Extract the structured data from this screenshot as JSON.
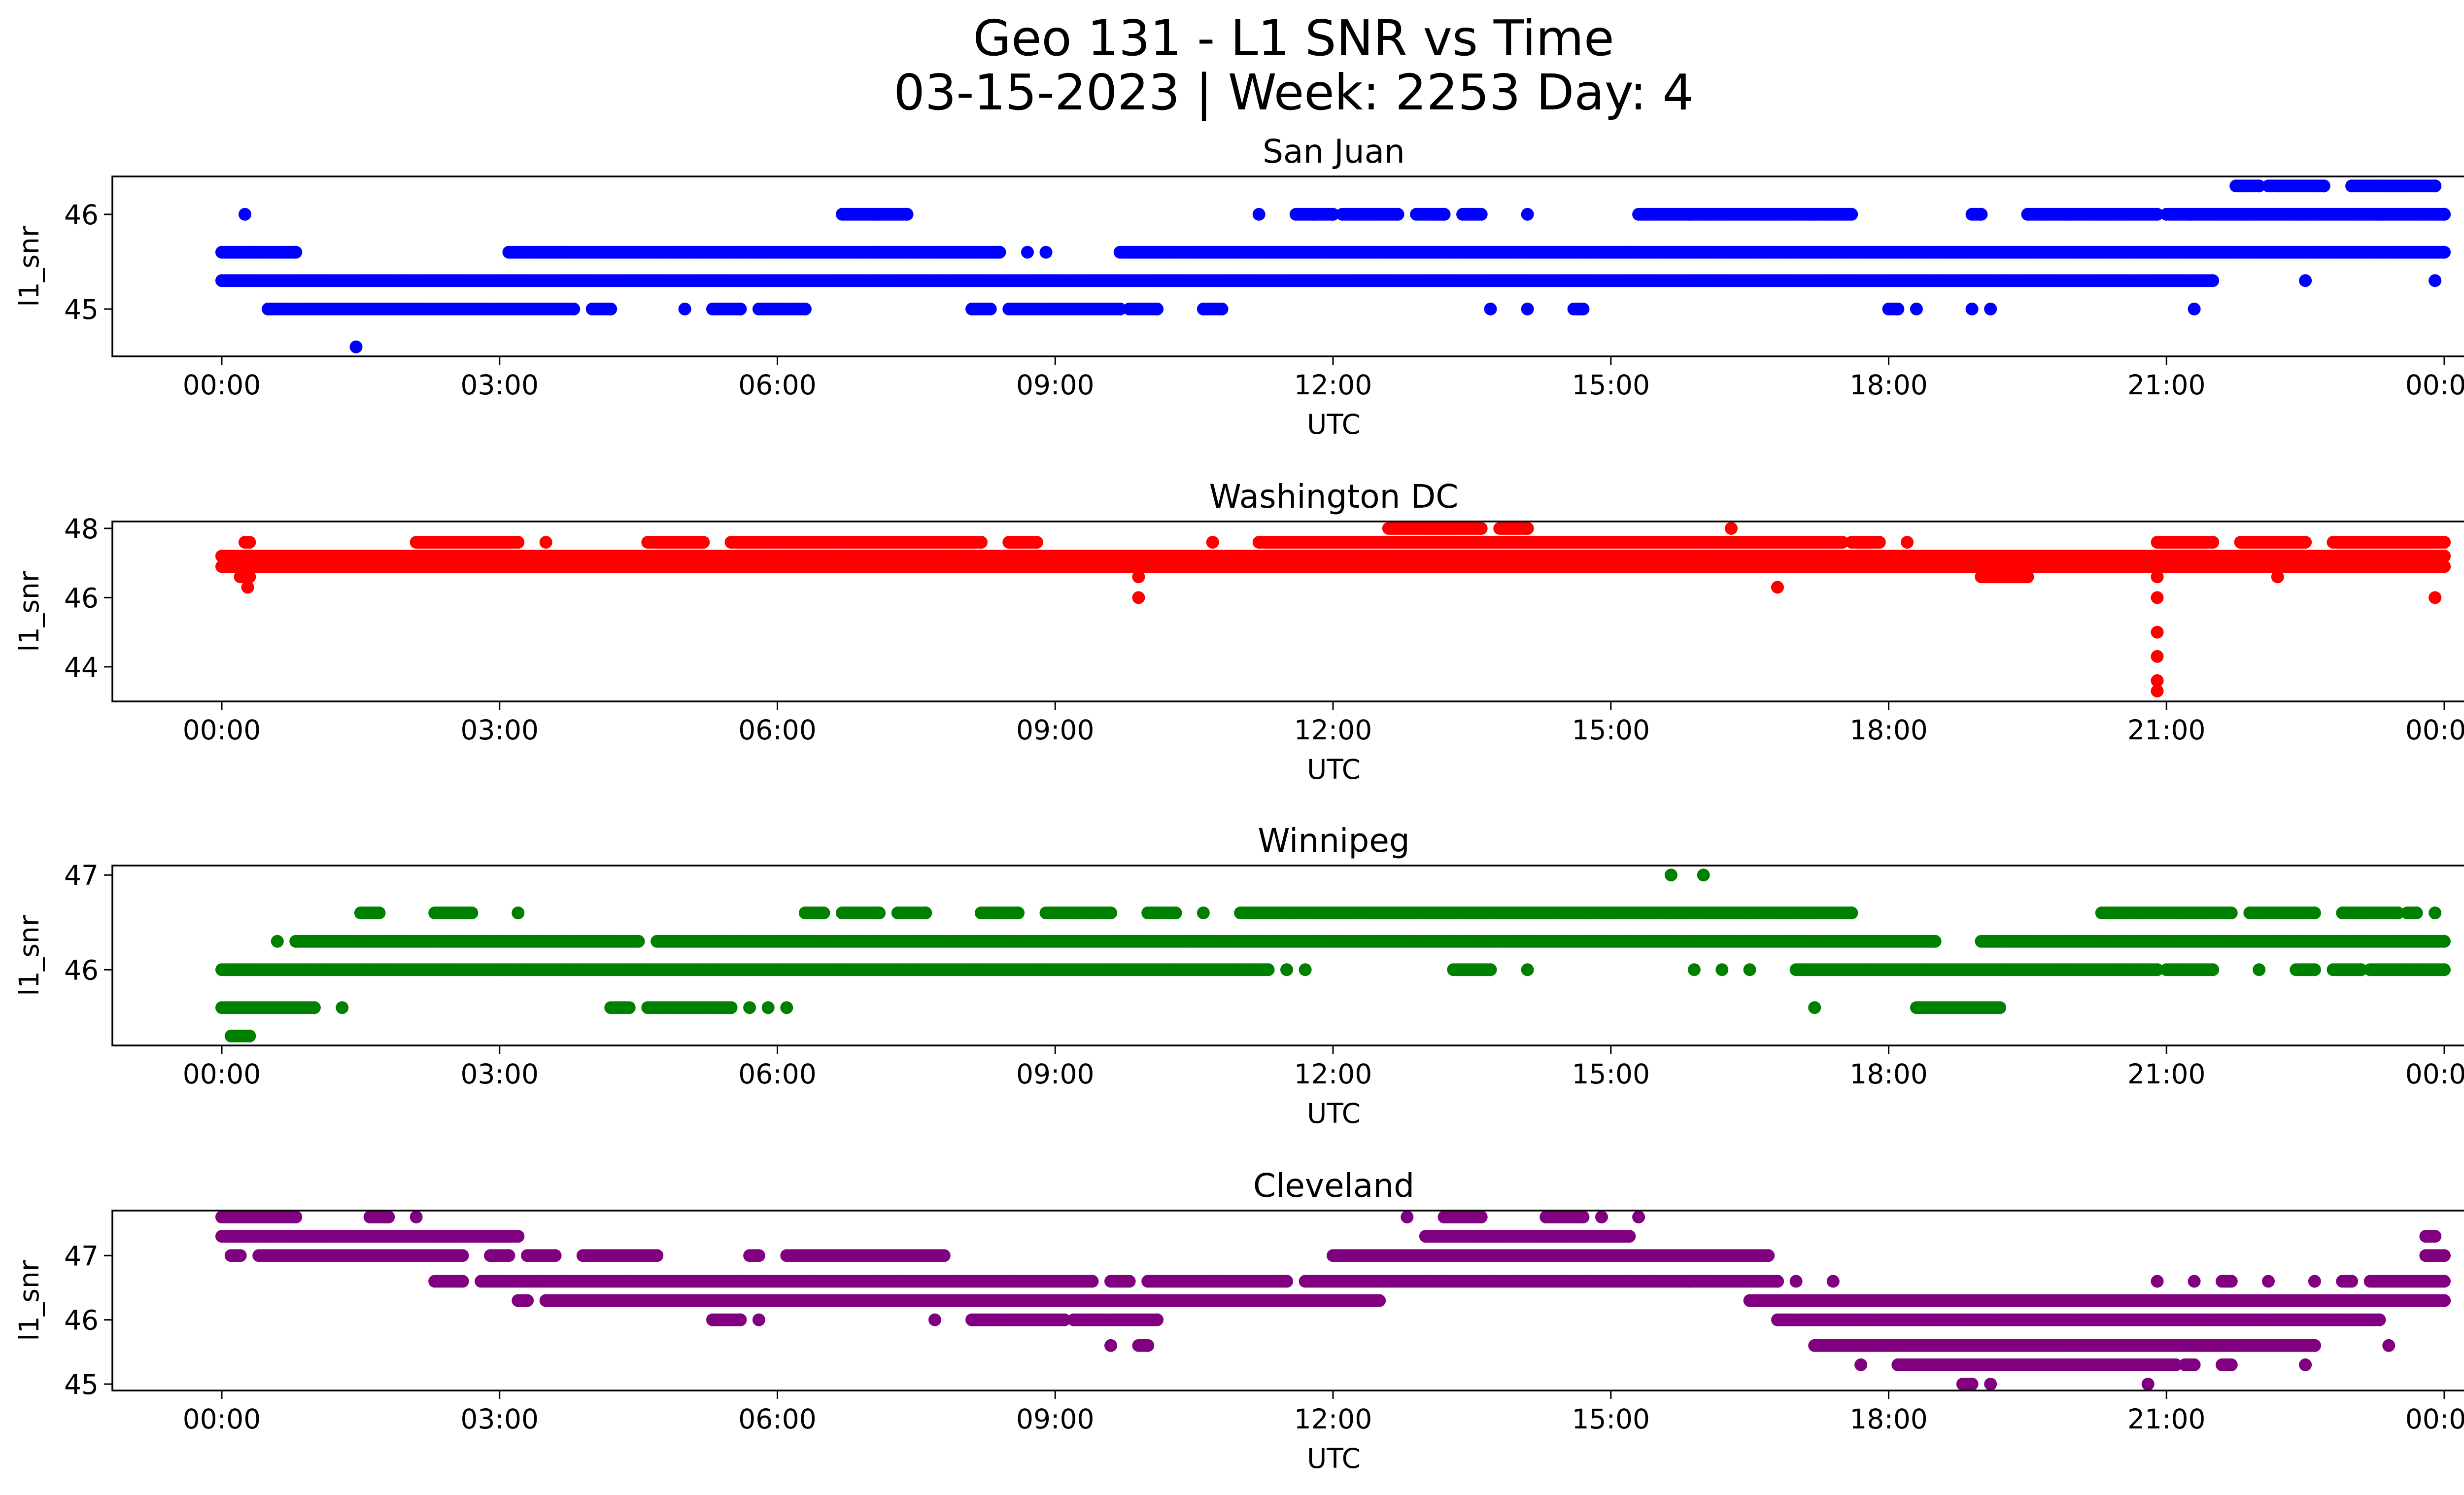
{
  "title_line1": "Geo 131 - L1 SNR vs Time",
  "title_line2": "03-15-2023 | Week: 2253 Day: 4",
  "chart_data": [
    {
      "type": "scatter",
      "title": "San Juan",
      "xlabel": "UTC",
      "ylabel": "l1_snr",
      "color": "#0000ff",
      "xlim": [
        "2023-03-15 00:00",
        "2023-03-16 00:00"
      ],
      "ylim": [
        44.5,
        46.4
      ],
      "xticks": [
        "00:00",
        "03:00",
        "06:00",
        "09:00",
        "12:00",
        "15:00",
        "18:00",
        "21:00",
        "00:00"
      ],
      "yticks": [
        45,
        46
      ],
      "x_unit": "hours UTC",
      "levels": [
        {
          "y": 46.3,
          "ranges": [
            [
              21.75,
              22.0
            ],
            [
              22.1,
              22.7
            ],
            [
              23.0,
              23.9
            ]
          ]
        },
        {
          "y": 46.0,
          "ranges": [
            [
              0.25,
              0.25
            ],
            [
              6.7,
              7.4
            ],
            [
              11.2,
              11.2
            ],
            [
              11.6,
              12.0
            ],
            [
              12.1,
              12.7
            ],
            [
              12.9,
              13.2
            ],
            [
              13.4,
              13.6
            ],
            [
              14.1,
              14.1
            ],
            [
              15.3,
              17.6
            ],
            [
              18.9,
              19.0
            ],
            [
              19.5,
              20.9
            ],
            [
              21.0,
              24.0
            ]
          ]
        },
        {
          "y": 45.6,
          "ranges": [
            [
              0.0,
              0.8
            ],
            [
              3.1,
              8.4
            ],
            [
              8.7,
              8.7
            ],
            [
              8.9,
              8.9
            ],
            [
              9.7,
              24.0
            ]
          ]
        },
        {
          "y": 45.3,
          "ranges": [
            [
              0.0,
              21.5
            ],
            [
              22.5,
              22.5
            ],
            [
              23.9,
              23.9
            ]
          ]
        },
        {
          "y": 45.0,
          "ranges": [
            [
              0.5,
              3.8
            ],
            [
              4.0,
              4.2
            ],
            [
              5.0,
              5.0
            ],
            [
              5.3,
              5.6
            ],
            [
              5.8,
              6.3
            ],
            [
              8.1,
              8.3
            ],
            [
              8.5,
              9.7
            ],
            [
              9.8,
              10.1
            ],
            [
              10.6,
              10.8
            ],
            [
              13.7,
              13.7
            ],
            [
              14.1,
              14.1
            ],
            [
              14.6,
              14.7
            ],
            [
              18.0,
              18.1
            ],
            [
              18.3,
              18.3
            ],
            [
              18.9,
              18.9
            ],
            [
              19.1,
              19.1
            ],
            [
              21.3,
              21.3
            ]
          ]
        },
        {
          "y": 44.6,
          "ranges": [
            [
              1.45,
              1.45
            ]
          ]
        }
      ]
    },
    {
      "type": "scatter",
      "title": "Washington DC",
      "xlabel": "UTC",
      "ylabel": "l1_snr",
      "color": "#ff0000",
      "xlim": [
        "2023-03-15 00:00",
        "2023-03-16 00:00"
      ],
      "ylim": [
        43.0,
        48.2
      ],
      "xticks": [
        "00:00",
        "03:00",
        "06:00",
        "09:00",
        "12:00",
        "15:00",
        "18:00",
        "21:00",
        "00:00"
      ],
      "yticks": [
        44,
        46,
        48
      ],
      "x_unit": "hours UTC",
      "levels": [
        {
          "y": 48.0,
          "ranges": [
            [
              12.6,
              13.6
            ],
            [
              13.8,
              14.1
            ],
            [
              16.3,
              16.3
            ]
          ]
        },
        {
          "y": 47.6,
          "ranges": [
            [
              0.25,
              0.3
            ],
            [
              2.1,
              3.2
            ],
            [
              3.5,
              3.5
            ],
            [
              4.6,
              5.2
            ],
            [
              5.5,
              8.2
            ],
            [
              8.5,
              8.8
            ],
            [
              10.7,
              10.7
            ],
            [
              11.2,
              17.5
            ],
            [
              17.6,
              17.9
            ],
            [
              18.2,
              18.2
            ],
            [
              20.9,
              21.5
            ],
            [
              21.8,
              22.5
            ],
            [
              22.8,
              24.0
            ]
          ]
        },
        {
          "y": 47.2,
          "ranges": [
            [
              0.0,
              24.0
            ]
          ]
        },
        {
          "y": 46.9,
          "ranges": [
            [
              0.0,
              24.0
            ]
          ]
        },
        {
          "y": 46.6,
          "ranges": [
            [
              0.2,
              0.3
            ],
            [
              9.9,
              9.9
            ],
            [
              19.0,
              19.5
            ],
            [
              20.9,
              20.9
            ],
            [
              22.2,
              22.2
            ]
          ]
        },
        {
          "y": 46.3,
          "ranges": [
            [
              0.28,
              0.28
            ],
            [
              16.8,
              16.8
            ]
          ]
        },
        {
          "y": 46.0,
          "ranges": [
            [
              9.9,
              9.9
            ],
            [
              20.9,
              20.9
            ],
            [
              23.9,
              23.9
            ]
          ]
        },
        {
          "y": 45.0,
          "ranges": [
            [
              20.9,
              20.9
            ]
          ]
        },
        {
          "y": 44.3,
          "ranges": [
            [
              20.9,
              20.9
            ]
          ]
        },
        {
          "y": 43.6,
          "ranges": [
            [
              20.9,
              20.9
            ]
          ]
        },
        {
          "y": 43.3,
          "ranges": [
            [
              20.9,
              20.9
            ]
          ]
        }
      ]
    },
    {
      "type": "scatter",
      "title": "Winnipeg",
      "xlabel": "UTC",
      "ylabel": "l1_snr",
      "color": "#008000",
      "xlim": [
        "2023-03-15 00:00",
        "2023-03-16 00:00"
      ],
      "ylim": [
        45.2,
        47.1
      ],
      "xticks": [
        "00:00",
        "03:00",
        "06:00",
        "09:00",
        "12:00",
        "15:00",
        "18:00",
        "21:00",
        "00:00"
      ],
      "yticks": [
        46,
        47
      ],
      "x_unit": "hours UTC",
      "levels": [
        {
          "y": 47.0,
          "ranges": [
            [
              15.65,
              15.65
            ],
            [
              16.0,
              16.0
            ]
          ]
        },
        {
          "y": 46.6,
          "ranges": [
            [
              1.5,
              1.7
            ],
            [
              2.3,
              2.7
            ],
            [
              3.2,
              3.2
            ],
            [
              6.3,
              6.5
            ],
            [
              6.7,
              7.1
            ],
            [
              7.3,
              7.6
            ],
            [
              8.2,
              8.6
            ],
            [
              8.9,
              9.6
            ],
            [
              10.0,
              10.3
            ],
            [
              10.6,
              10.6
            ],
            [
              11.0,
              17.6
            ],
            [
              20.3,
              21.7
            ],
            [
              21.9,
              22.6
            ],
            [
              22.9,
              23.5
            ],
            [
              23.6,
              23.7
            ],
            [
              23.9,
              23.9
            ]
          ]
        },
        {
          "y": 46.3,
          "ranges": [
            [
              0.6,
              0.6
            ],
            [
              0.8,
              4.5
            ],
            [
              4.7,
              18.5
            ],
            [
              19.0,
              24.0
            ]
          ]
        },
        {
          "y": 46.0,
          "ranges": [
            [
              0.0,
              11.3
            ],
            [
              11.5,
              11.5
            ],
            [
              11.7,
              11.7
            ],
            [
              13.3,
              13.7
            ],
            [
              14.1,
              14.1
            ],
            [
              15.9,
              15.9
            ],
            [
              16.2,
              16.2
            ],
            [
              16.5,
              16.5
            ],
            [
              17.0,
              20.9
            ],
            [
              21.0,
              21.5
            ],
            [
              22.0,
              22.0
            ],
            [
              22.4,
              22.6
            ],
            [
              22.8,
              23.1
            ],
            [
              23.2,
              24.0
            ]
          ]
        },
        {
          "y": 45.6,
          "ranges": [
            [
              0.0,
              1.0
            ],
            [
              1.3,
              1.3
            ],
            [
              4.2,
              4.4
            ],
            [
              4.6,
              5.5
            ],
            [
              5.7,
              5.7
            ],
            [
              5.9,
              5.9
            ],
            [
              6.1,
              6.1
            ],
            [
              17.2,
              17.2
            ],
            [
              18.3,
              19.2
            ]
          ]
        },
        {
          "y": 45.3,
          "ranges": [
            [
              0.1,
              0.3
            ]
          ]
        }
      ]
    },
    {
      "type": "scatter",
      "title": "Cleveland",
      "xlabel": "UTC",
      "ylabel": "l1_snr",
      "color": "#800080",
      "xlim": [
        "2023-03-15 00:00",
        "2023-03-16 00:00"
      ],
      "ylim": [
        44.9,
        47.7
      ],
      "xticks": [
        "00:00",
        "03:00",
        "06:00",
        "09:00",
        "12:00",
        "15:00",
        "18:00",
        "21:00",
        "00:00"
      ],
      "yticks": [
        45,
        46,
        47
      ],
      "x_unit": "hours UTC",
      "levels": [
        {
          "y": 47.6,
          "ranges": [
            [
              0.0,
              0.8
            ],
            [
              1.6,
              1.8
            ],
            [
              2.1,
              2.1
            ],
            [
              12.8,
              12.8
            ],
            [
              13.2,
              13.6
            ],
            [
              14.3,
              14.7
            ],
            [
              14.9,
              14.9
            ],
            [
              15.3,
              15.3
            ]
          ]
        },
        {
          "y": 47.3,
          "ranges": [
            [
              0.0,
              3.2
            ],
            [
              13.0,
              15.2
            ],
            [
              23.8,
              23.9
            ]
          ]
        },
        {
          "y": 47.0,
          "ranges": [
            [
              0.1,
              0.2
            ],
            [
              0.4,
              2.6
            ],
            [
              2.9,
              3.1
            ],
            [
              3.3,
              3.6
            ],
            [
              3.9,
              4.7
            ],
            [
              5.7,
              5.8
            ],
            [
              6.1,
              7.8
            ],
            [
              12.0,
              16.7
            ],
            [
              23.8,
              24.0
            ]
          ]
        },
        {
          "y": 46.6,
          "ranges": [
            [
              2.3,
              2.6
            ],
            [
              2.8,
              9.4
            ],
            [
              9.6,
              9.8
            ],
            [
              10.0,
              11.5
            ],
            [
              11.7,
              16.8
            ],
            [
              17.0,
              17.0
            ],
            [
              17.4,
              17.4
            ],
            [
              20.9,
              20.9
            ],
            [
              21.3,
              21.3
            ],
            [
              21.6,
              21.7
            ],
            [
              22.1,
              22.1
            ],
            [
              22.6,
              22.6
            ],
            [
              22.9,
              23.0
            ],
            [
              23.2,
              24.0
            ]
          ]
        },
        {
          "y": 46.3,
          "ranges": [
            [
              3.2,
              3.3
            ],
            [
              3.5,
              12.5
            ],
            [
              16.5,
              24.0
            ]
          ]
        },
        {
          "y": 46.0,
          "ranges": [
            [
              5.3,
              5.6
            ],
            [
              5.8,
              5.8
            ],
            [
              7.7,
              7.7
            ],
            [
              8.1,
              9.1
            ],
            [
              9.2,
              10.1
            ],
            [
              16.8,
              23.3
            ]
          ]
        },
        {
          "y": 45.6,
          "ranges": [
            [
              9.6,
              9.6
            ],
            [
              9.9,
              10.0
            ],
            [
              17.2,
              22.6
            ],
            [
              23.4,
              23.4
            ]
          ]
        },
        {
          "y": 45.3,
          "ranges": [
            [
              17.7,
              17.7
            ],
            [
              18.1,
              21.1
            ],
            [
              21.2,
              21.3
            ],
            [
              21.6,
              21.7
            ],
            [
              22.5,
              22.5
            ]
          ]
        },
        {
          "y": 45.0,
          "ranges": [
            [
              18.8,
              18.9
            ],
            [
              19.1,
              19.1
            ],
            [
              20.8,
              20.8
            ]
          ]
        }
      ]
    }
  ]
}
